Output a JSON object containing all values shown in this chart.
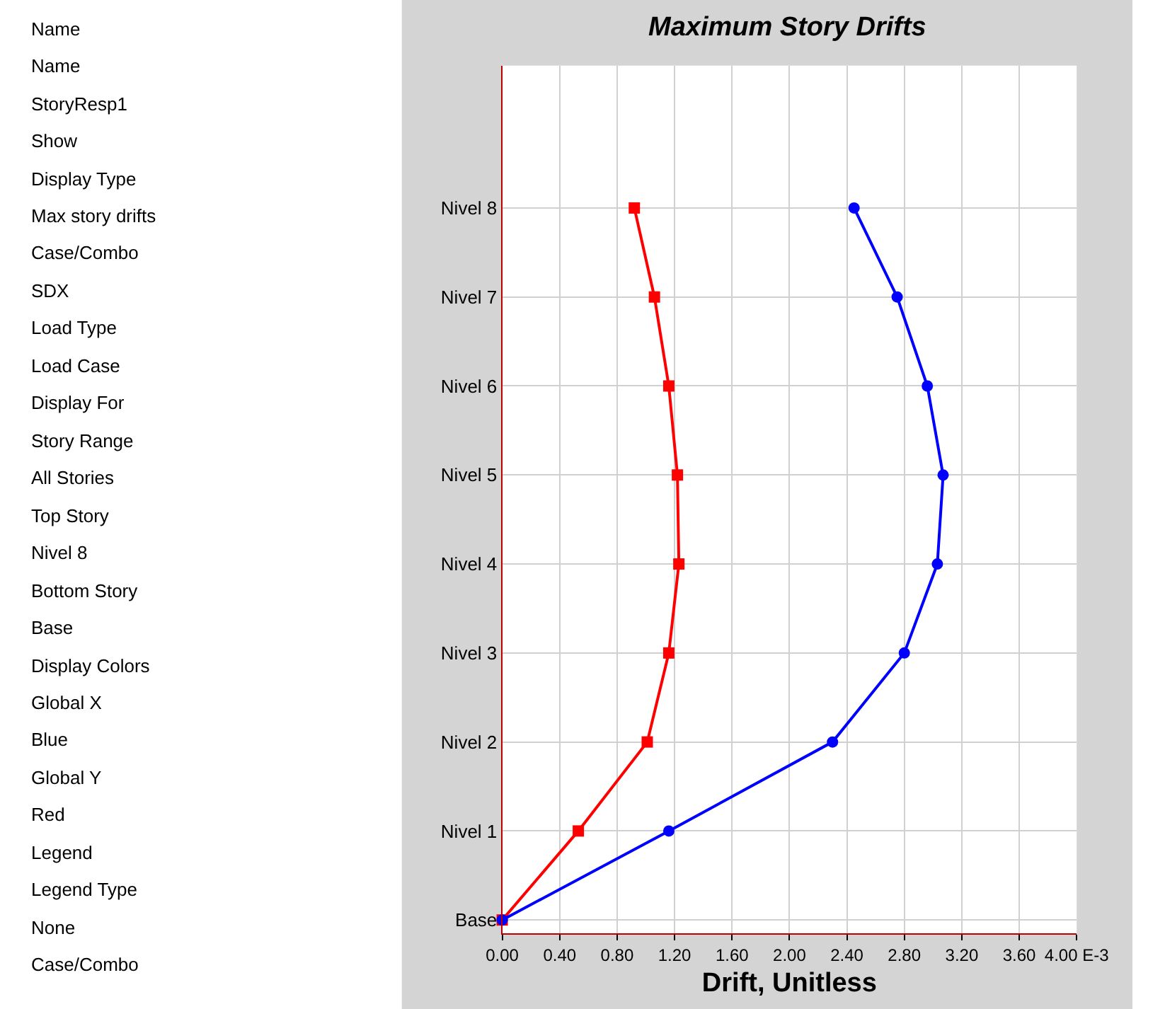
{
  "chart_data": [
    {
      "type": "other",
      "annotations": [
        "Name",
        "Name",
        "StoryResp1",
        "Show",
        "Display Type",
        "Max story drifts",
        "Case/Combo",
        "SDX",
        "Load Type",
        "Load Case",
        "Display For",
        "Story Range",
        "All Stories",
        "Top Story",
        "Nivel 8",
        "Bottom Story",
        "Base",
        "Display Colors",
        "Global X",
        "Blue",
        "Global Y",
        "Red",
        "Legend",
        "Legend Type",
        "None",
        "Case/Combo"
      ]
    },
    {
      "type": "line",
      "orientation": "horizontal",
      "title": "Maximum Story Drifts",
      "xlabel": "Drift, Unitless",
      "categories": [
        "Nivel 8",
        "Nivel 7",
        "Nivel 6",
        "Nivel 5",
        "Nivel 4",
        "Nivel 3",
        "Nivel 2",
        "Nivel 1",
        "Base"
      ],
      "series": [
        {
          "color": "#ff0000",
          "marker": "square",
          "values": [
            0.92,
            1.06,
            1.16,
            1.22,
            1.23,
            1.16,
            1.01,
            0.53,
            0
          ]
        },
        {
          "color": "#0000ff",
          "marker": "circle",
          "values": [
            2.45,
            2.75,
            2.96,
            3.07,
            3.03,
            2.8,
            2.3,
            1.16,
            0
          ]
        }
      ],
      "xlim": [
        0,
        4
      ],
      "xticks": [
        {
          "value": 0,
          "label": "0.00"
        },
        {
          "value": 0.4,
          "label": "0.40"
        },
        {
          "value": 0.8,
          "label": "0.80"
        },
        {
          "value": 1.2,
          "label": "1.20"
        },
        {
          "value": 1.6,
          "label": "1.60"
        },
        {
          "value": 2.0,
          "label": "2.00"
        },
        {
          "value": 2.4,
          "label": "2.40"
        },
        {
          "value": 2.8,
          "label": "2.80"
        },
        {
          "value": 3.2,
          "label": "3.20"
        },
        {
          "value": 3.6,
          "label": "3.60"
        },
        {
          "value": 4.0,
          "label": "4.00 E-3"
        }
      ],
      "grid": true
    }
  ]
}
